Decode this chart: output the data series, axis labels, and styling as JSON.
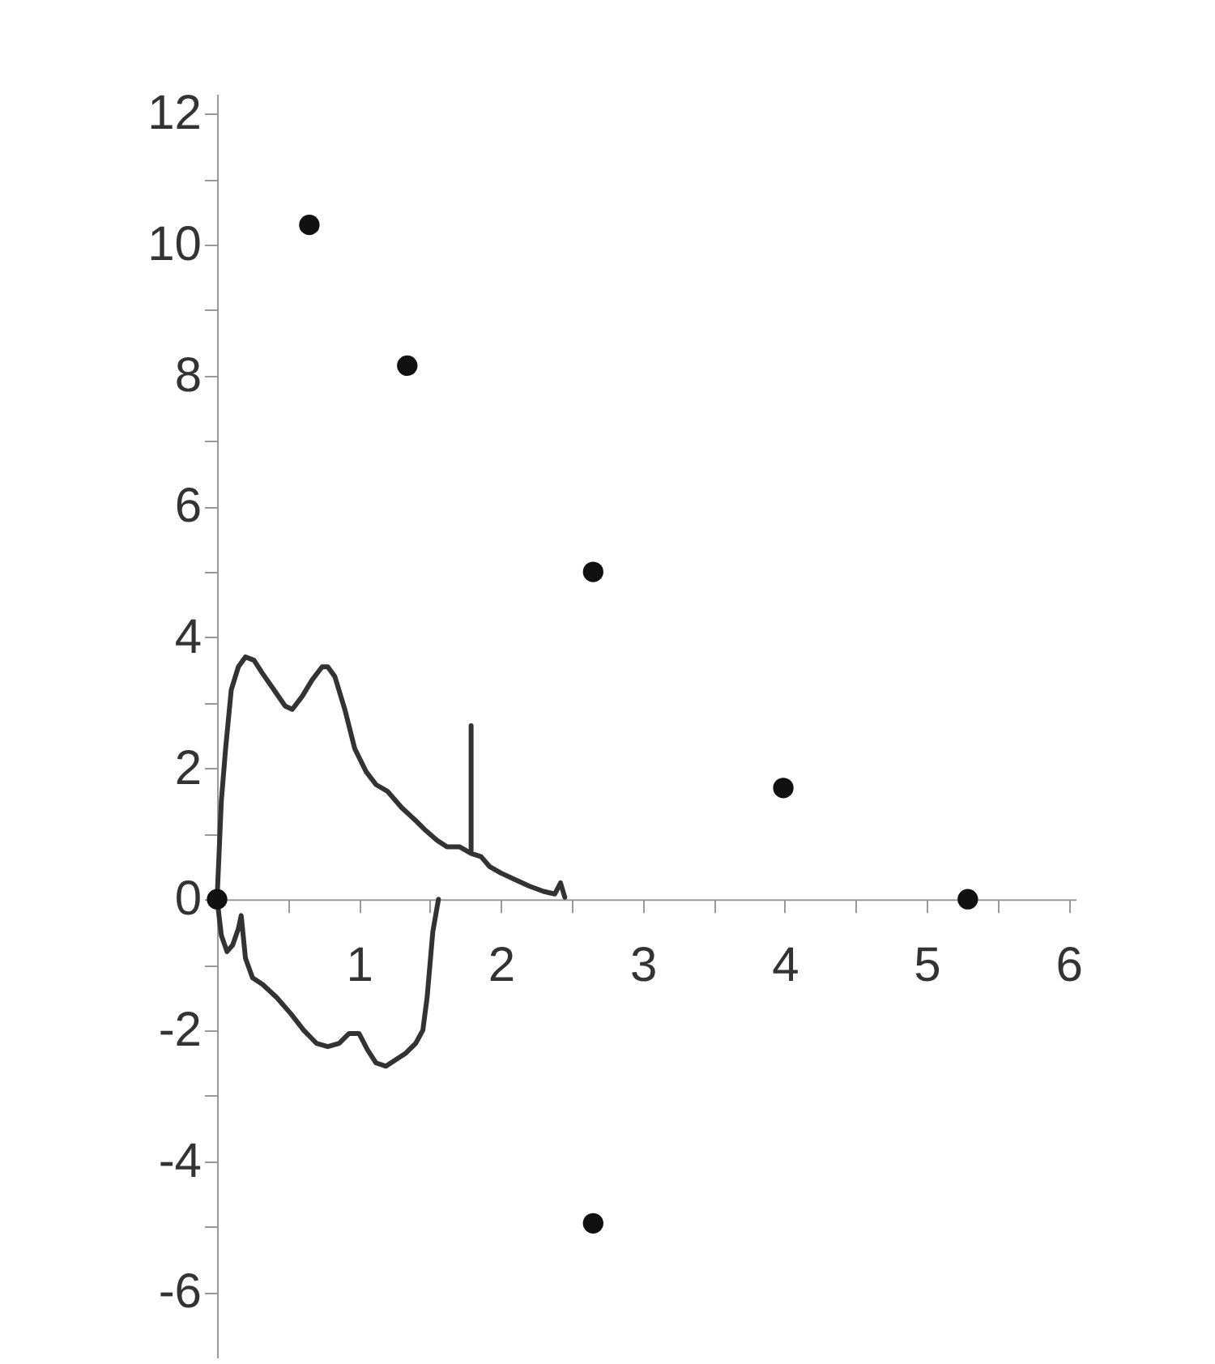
{
  "chart_data": {
    "type": "scatter",
    "xlim": [
      0,
      6.05
    ],
    "ylim": [
      -7,
      12.3
    ],
    "xticks": [
      {
        "value": 0.5,
        "label": null
      },
      1,
      {
        "value": 1.5,
        "label": null
      },
      2,
      {
        "value": 2.5,
        "label": null
      },
      3,
      {
        "value": 3.5,
        "label": null
      },
      4,
      {
        "value": 4.5,
        "label": null
      },
      5,
      {
        "value": 5.5,
        "label": null
      },
      6
    ],
    "yticks": [
      -6,
      {
        "value": -5,
        "label": null
      },
      -4,
      {
        "value": -3,
        "label": null
      },
      -2,
      {
        "value": -1,
        "label": null
      },
      0,
      {
        "value": 1,
        "label": null
      },
      2,
      {
        "value": 3,
        "label": null
      },
      4,
      {
        "value": 5,
        "label": null
      },
      6,
      {
        "value": 7,
        "label": null
      },
      8,
      {
        "value": 9,
        "label": null
      },
      10,
      {
        "value": 11,
        "label": null
      },
      12
    ],
    "grid": false,
    "series": [
      {
        "type": "line",
        "color": "#333333",
        "marker": "none",
        "line_style": "solid",
        "x": [
          0.0,
          0.03,
          0.06,
          0.1,
          0.15,
          0.2,
          0.26,
          0.32,
          0.4,
          0.48,
          0.53,
          0.6,
          0.67,
          0.74,
          0.78,
          0.83,
          0.9,
          0.97,
          1.05,
          1.12,
          1.2,
          1.3,
          1.4,
          1.47,
          1.55,
          1.62,
          1.71,
          1.79,
          1.86,
          1.92,
          2.0,
          2.1,
          2.2,
          2.3,
          2.38,
          2.42,
          2.45
        ],
        "values": [
          0.0,
          1.5,
          2.3,
          3.2,
          3.55,
          3.7,
          3.65,
          3.45,
          3.2,
          2.95,
          2.9,
          3.1,
          3.35,
          3.55,
          3.55,
          3.4,
          2.9,
          2.3,
          1.95,
          1.75,
          1.65,
          1.4,
          1.2,
          1.05,
          0.9,
          0.8,
          0.8,
          0.7,
          0.65,
          0.5,
          0.4,
          0.3,
          0.2,
          0.12,
          0.08,
          0.25,
          0.03
        ]
      },
      {
        "type": "line",
        "color": "#333333",
        "marker": "none",
        "line_style": "solid",
        "x": [
          0.0,
          0.03,
          0.07,
          0.11,
          0.15,
          0.17,
          0.2,
          0.25,
          0.32,
          0.42,
          0.52,
          0.61,
          0.7,
          0.78,
          0.86,
          0.93,
          1.0,
          1.06,
          1.12,
          1.19,
          1.26,
          1.33,
          1.4,
          1.45,
          1.48,
          1.5,
          1.52,
          1.56
        ],
        "values": [
          0.0,
          -0.55,
          -0.8,
          -0.7,
          -0.45,
          -0.25,
          -0.9,
          -1.2,
          -1.3,
          -1.5,
          -1.75,
          -2.0,
          -2.2,
          -2.25,
          -2.2,
          -2.05,
          -2.05,
          -2.3,
          -2.5,
          -2.55,
          -2.45,
          -2.35,
          -2.2,
          -2.0,
          -1.5,
          -1.0,
          -0.5,
          0.0
        ]
      },
      {
        "type": "line",
        "color": "#333333",
        "marker": "none",
        "line_style": "solid",
        "x": [
          1.79,
          1.79
        ],
        "values": [
          0.75,
          2.65
        ]
      },
      {
        "color": "#111111",
        "marker": "circle",
        "x": [
          0.0,
          0.65,
          1.34,
          2.65,
          3.99,
          5.29,
          2.65
        ],
        "values": [
          0.0,
          10.3,
          8.15,
          5.0,
          1.7,
          0.0,
          -4.95
        ]
      }
    ]
  }
}
